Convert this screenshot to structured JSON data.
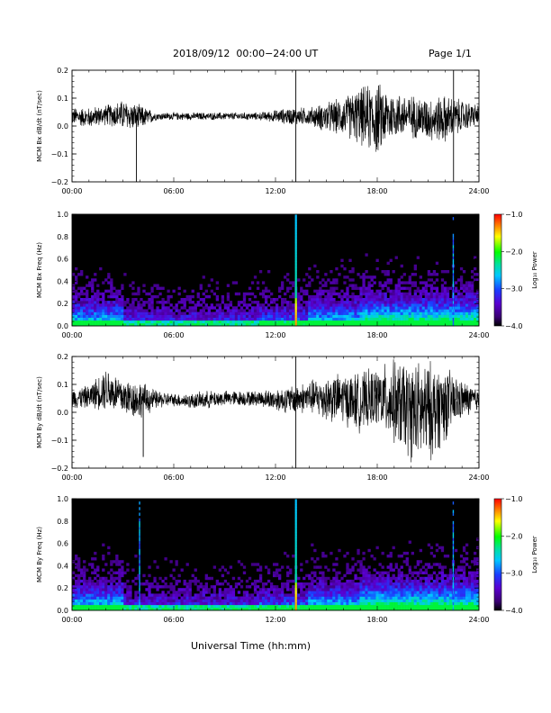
{
  "header": {
    "title": "2018/09/12  00:00−24:00 UT",
    "page": "Page 1/1"
  },
  "xlabel": "Universal Time (hh:mm)",
  "colorbar": {
    "label": "Log₁₀ Power",
    "ticks": [
      "−1.0",
      "−2.0",
      "−3.0",
      "−4.0"
    ],
    "range": [
      -4.0,
      -1.0
    ]
  },
  "chart_data": [
    {
      "type": "line",
      "ylabel": "MCM Bx dB/dt (nT/sec)",
      "x_ticks": [
        "00:00",
        "06:00",
        "12:00",
        "18:00",
        "24:00"
      ],
      "y_ticks": [
        "0.2",
        "0.1",
        "0.0",
        "−0.1",
        "−0.2"
      ],
      "xlim": [
        0,
        24
      ],
      "ylim": [
        -0.2,
        0.2
      ],
      "series": [
        {
          "x": [
            0,
            1,
            2,
            3,
            4,
            5,
            6,
            7,
            8,
            9,
            10,
            11,
            12,
            13,
            14,
            15,
            16,
            17,
            18,
            19,
            20,
            21,
            22,
            23,
            24
          ],
          "y_upper": [
            0.07,
            0.07,
            0.08,
            0.1,
            0.08,
            0.05,
            0.05,
            0.05,
            0.05,
            0.05,
            0.05,
            0.05,
            0.06,
            0.07,
            0.07,
            0.09,
            0.11,
            0.15,
            0.17,
            0.13,
            0.12,
            0.11,
            0.12,
            0.1,
            0.08
          ],
          "y_lower": [
            0.0,
            -0.01,
            0.0,
            -0.02,
            -0.02,
            0.02,
            0.02,
            0.02,
            0.02,
            0.02,
            0.02,
            0.02,
            0.01,
            0.0,
            0.0,
            -0.03,
            -0.04,
            -0.08,
            -0.12,
            -0.05,
            -0.05,
            -0.06,
            -0.07,
            -0.03,
            0.0
          ]
        }
      ],
      "spikes": [
        {
          "x": 3.8,
          "y": -0.2
        },
        {
          "x": 13.2,
          "y": 0.2
        },
        {
          "x": 13.2,
          "y": -0.2
        },
        {
          "x": 22.5,
          "y": 0.2
        },
        {
          "x": 22.5,
          "y": -0.2
        }
      ]
    },
    {
      "type": "heatmap",
      "ylabel": "MCM Bx Freq (Hz)",
      "x_ticks": [
        "00:00",
        "06:00",
        "12:00",
        "18:00",
        "24:00"
      ],
      "y_ticks": [
        "1.0",
        "0.8",
        "0.6",
        "0.4",
        "0.2",
        "0.0"
      ],
      "xlim": [
        0,
        24
      ],
      "ylim": [
        0,
        1.0
      ],
      "zlim": [
        -4.0,
        -1.0
      ],
      "lines": [
        13.2,
        22.5
      ]
    },
    {
      "type": "line",
      "ylabel": "MCM By dB/dt (nT/sec)",
      "x_ticks": [
        "00:00",
        "06:00",
        "12:00",
        "18:00",
        "24:00"
      ],
      "y_ticks": [
        "0.2",
        "0.1",
        "0.0",
        "−0.1",
        "−0.2"
      ],
      "xlim": [
        0,
        24
      ],
      "ylim": [
        -0.2,
        0.2
      ],
      "series": [
        {
          "x": [
            0,
            1,
            2,
            3,
            4,
            5,
            6,
            7,
            8,
            9,
            10,
            11,
            12,
            13,
            14,
            15,
            16,
            17,
            18,
            19,
            20,
            21,
            22,
            23,
            24
          ],
          "y_upper": [
            0.09,
            0.1,
            0.17,
            0.13,
            0.12,
            0.08,
            0.07,
            0.07,
            0.08,
            0.08,
            0.08,
            0.08,
            0.09,
            0.1,
            0.12,
            0.14,
            0.15,
            0.15,
            0.17,
            0.2,
            0.2,
            0.2,
            0.18,
            0.12,
            0.09
          ],
          "y_lower": [
            0.01,
            0.01,
            0.0,
            -0.02,
            -0.03,
            0.01,
            0.02,
            0.01,
            0.01,
            0.02,
            0.02,
            0.02,
            0.0,
            -0.01,
            -0.01,
            -0.04,
            -0.05,
            -0.08,
            -0.06,
            -0.13,
            -0.19,
            -0.2,
            -0.12,
            -0.03,
            0.0
          ]
        }
      ],
      "spikes": [
        {
          "x": 4.2,
          "y": -0.16
        },
        {
          "x": 13.2,
          "y": 0.2
        },
        {
          "x": 13.2,
          "y": -0.2
        }
      ]
    },
    {
      "type": "heatmap",
      "ylabel": "MCM By Freq (Hz)",
      "x_ticks": [
        "00:00",
        "06:00",
        "12:00",
        "18:00",
        "24:00"
      ],
      "y_ticks": [
        "1.0",
        "0.8",
        "0.6",
        "0.4",
        "0.2",
        "0.0"
      ],
      "xlim": [
        0,
        24
      ],
      "ylim": [
        0,
        1.0
      ],
      "zlim": [
        -4.0,
        -1.0
      ],
      "lines": [
        4.0,
        13.2,
        22.5
      ]
    }
  ]
}
